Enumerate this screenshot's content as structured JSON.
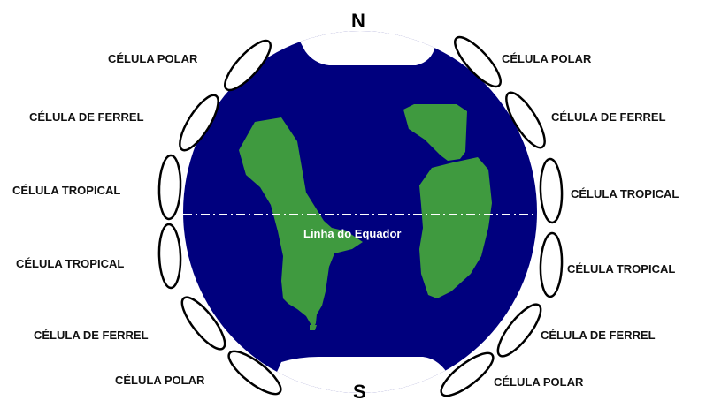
{
  "colors": {
    "ocean": "#00007e",
    "land": "#3f9a3f",
    "equator_line": "#ffffff",
    "cell_outline": "#000000",
    "label_text": "#111111",
    "background": "#ffffff"
  },
  "poles": {
    "north": "N",
    "south": "S"
  },
  "equator": {
    "label": "Linha do Equador"
  },
  "cells": {
    "left": [
      {
        "label": "CÉLULA POLAR"
      },
      {
        "label": "CÉLULA DE FERREL"
      },
      {
        "label": "CÉLULA TROPICAL"
      },
      {
        "label": "CÉLULA TROPICAL"
      },
      {
        "label": "CÉLULA DE FERREL"
      },
      {
        "label": "CÉLULA POLAR"
      }
    ],
    "right": [
      {
        "label": "CÉLULA POLAR"
      },
      {
        "label": "CÉLULA DE FERREL"
      },
      {
        "label": "CÉLULA TROPICAL"
      },
      {
        "label": "CÉLULA TROPICAL"
      },
      {
        "label": "CÉLULA DE FERREL"
      },
      {
        "label": "CÉLULA POLAR"
      }
    ]
  }
}
